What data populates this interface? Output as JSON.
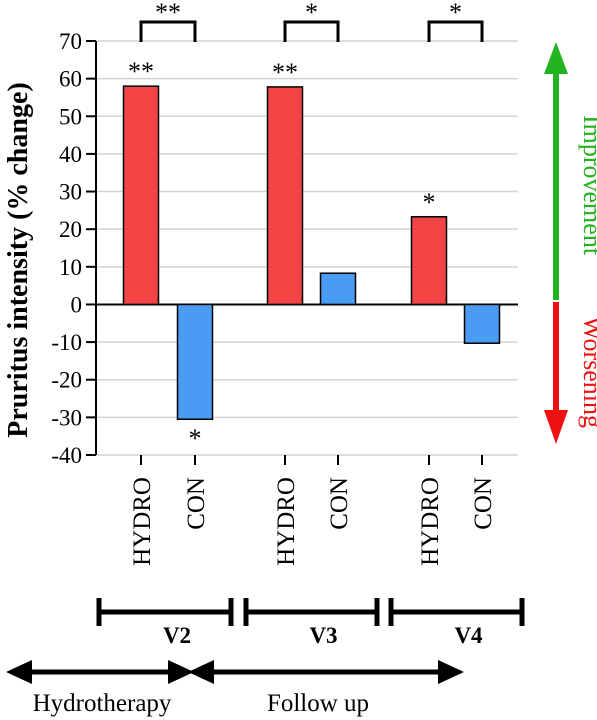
{
  "chart_data": {
    "type": "bar",
    "ylabel": "Pruritus intensity (% change)",
    "ylim": [
      -40,
      70
    ],
    "yticks": [
      "70",
      "60",
      "50",
      "40",
      "30",
      "20",
      "10",
      "0",
      "-10",
      "-20",
      "-30",
      "-40"
    ],
    "grid": true,
    "categories": [
      "HYDRO",
      "CON",
      "HYDRO",
      "CON",
      "HYDRO",
      "CON"
    ],
    "groups": [
      "V2",
      "V3",
      "V4"
    ],
    "values": [
      58,
      -30.5,
      57.8,
      8.3,
      23.3,
      -10.3
    ],
    "bar_colors": [
      "#f24444",
      "#4a9cf2",
      "#f24444",
      "#4a9cf2",
      "#f24444",
      "#4a9cf2"
    ],
    "bar_significance": [
      "**",
      "*",
      "**",
      "",
      "*",
      ""
    ],
    "bracket_significance": [
      "**",
      "*",
      "*"
    ],
    "arrows": {
      "improvement": {
        "label": "Improvement",
        "color": "#22b41e"
      },
      "worsening": {
        "label": "Worsening",
        "color": "#ee1111"
      }
    },
    "phases": {
      "hydrotherapy": "Hydrotherapy",
      "follow_up": "Follow up"
    }
  }
}
